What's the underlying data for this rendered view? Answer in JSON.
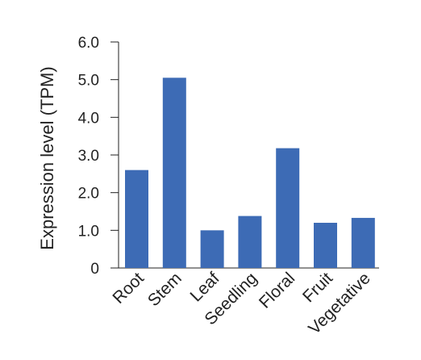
{
  "colors": {
    "bar": "#3d6bb5",
    "axis": "#222222",
    "background": "#ffffff"
  },
  "chart_data": {
    "type": "bar",
    "title": "",
    "xlabel": "",
    "ylabel": "Expression level (TPM)",
    "categories": [
      "Root",
      "Stem",
      "Leaf",
      "Seedling",
      "Floral",
      "Fruit",
      "Vegetative"
    ],
    "values": [
      2.6,
      5.05,
      1.0,
      1.38,
      3.18,
      1.2,
      1.33
    ],
    "ylim": [
      0,
      6
    ],
    "yticks": [
      0,
      1,
      2,
      3,
      4,
      5,
      6
    ],
    "ytick_labels": [
      "0",
      "1.0",
      "2.0",
      "3.0",
      "4.0",
      "5.0",
      "6.0"
    ],
    "grid": false,
    "legend": "none"
  }
}
